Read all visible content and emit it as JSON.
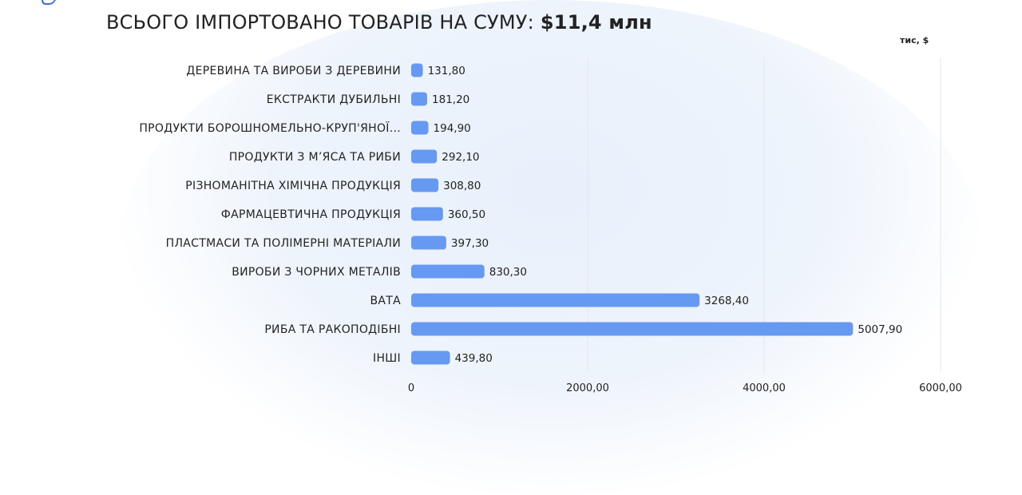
{
  "header": {
    "title_label": "ВСЬОГО ІМПОРТОВАНО ТОВАРІВ НА СУМУ:",
    "title_value": "$11,4 млн"
  },
  "colors": {
    "bar": "#6699f2",
    "grid": "#e3e7ee",
    "text": "#222222"
  },
  "chart_data": {
    "type": "bar",
    "orientation": "horizontal",
    "unit_label": "тис, $",
    "categories": [
      "ДЕРЕВИНА ТА ВИРОБИ З ДЕРЕВИНИ",
      "ЕКСТРАКТИ ДУБИЛЬНІ",
      "ПРОДУКТИ БОРОШНОМЕЛЬНО-КРУП'ЯНОЇ...",
      "ПРОДУКТИ З М’ЯСА ТА РИБИ",
      "РІЗНОМАНІТНА ХІМІЧНА ПРОДУКЦІЯ",
      "ФАРМАЦЕВТИЧНА ПРОДУКЦІЯ",
      "ПЛАСТМАСИ ТА ПОЛІМЕРНІ МАТЕРІАЛИ",
      "ВИРОБИ З ЧОРНИХ МЕТАЛІВ",
      "ВАТА",
      "РИБА ТА РАКОПОДІБНІ",
      "ІНШІ"
    ],
    "values": [
      131.8,
      181.2,
      194.9,
      292.1,
      308.8,
      360.5,
      397.3,
      830.3,
      3268.4,
      5007.9,
      439.8
    ],
    "value_labels": [
      "131,80",
      "181,20",
      "194,90",
      "292,10",
      "308,80",
      "360,50",
      "397,30",
      "830,30",
      "3268,40",
      "5007,90",
      "439,80"
    ],
    "x_ticks": [
      0,
      2000,
      4000,
      6000
    ],
    "x_tick_labels": [
      "0",
      "2000,00",
      "4000,00",
      "6000,00"
    ],
    "xlim": [
      0,
      6000
    ],
    "grid": true,
    "legend": "none"
  }
}
